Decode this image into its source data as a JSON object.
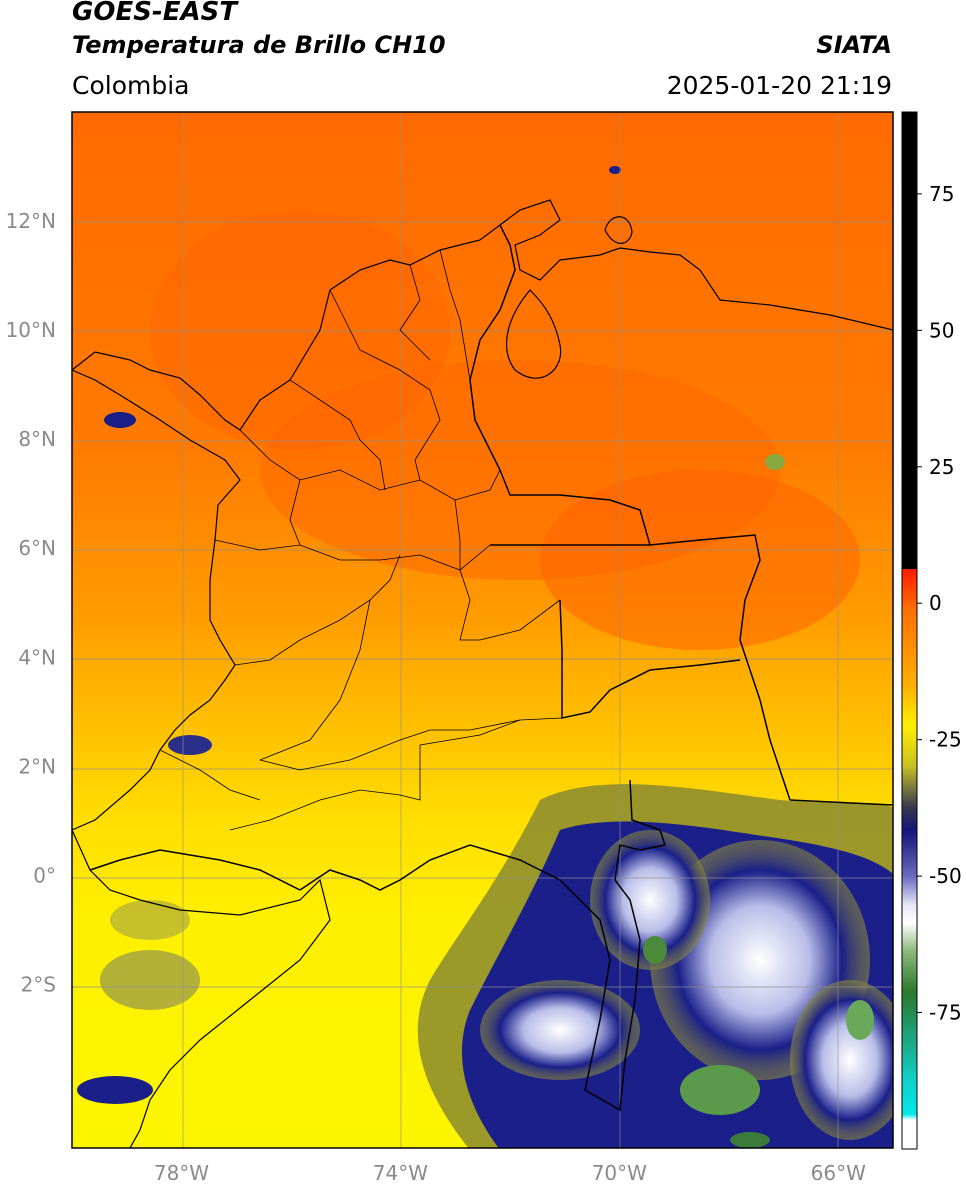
{
  "header": {
    "title": "GOES-EAST",
    "subtitle": "Temperatura de Brillo CH10",
    "agency": "SIATA",
    "region": "Colombia",
    "timestamp": "2025-01-20 21:19"
  },
  "map": {
    "lon_range": [
      -80,
      -65
    ],
    "lat_range": [
      -5,
      14
    ],
    "lat_ticks": [
      "12°N",
      "10°N",
      "8°N",
      "6°N",
      "4°N",
      "2°N",
      "0°",
      "2°S"
    ],
    "lon_ticks": [
      "78°W",
      "74°W",
      "70°W",
      "66°W"
    ],
    "grid": true
  },
  "colorbar": {
    "range": [
      -100,
      90
    ],
    "tick_values": [
      75,
      50,
      25,
      0,
      -25,
      -50,
      -75
    ],
    "tick_labels": [
      "75",
      "50",
      "25",
      "0",
      "-25",
      "-50",
      "-75"
    ]
  },
  "colors": {
    "warm_orange": "#ff6e00",
    "orange": "#ff9000",
    "yellow": "#ffee00",
    "olive": "#9a9a30",
    "navy": "#1a1f8a",
    "white_cloud": "#f0f0ff",
    "green": "#4a8a3a",
    "cyan": "#10d8d8",
    "black": "#000000",
    "red": "#ff1a00"
  }
}
